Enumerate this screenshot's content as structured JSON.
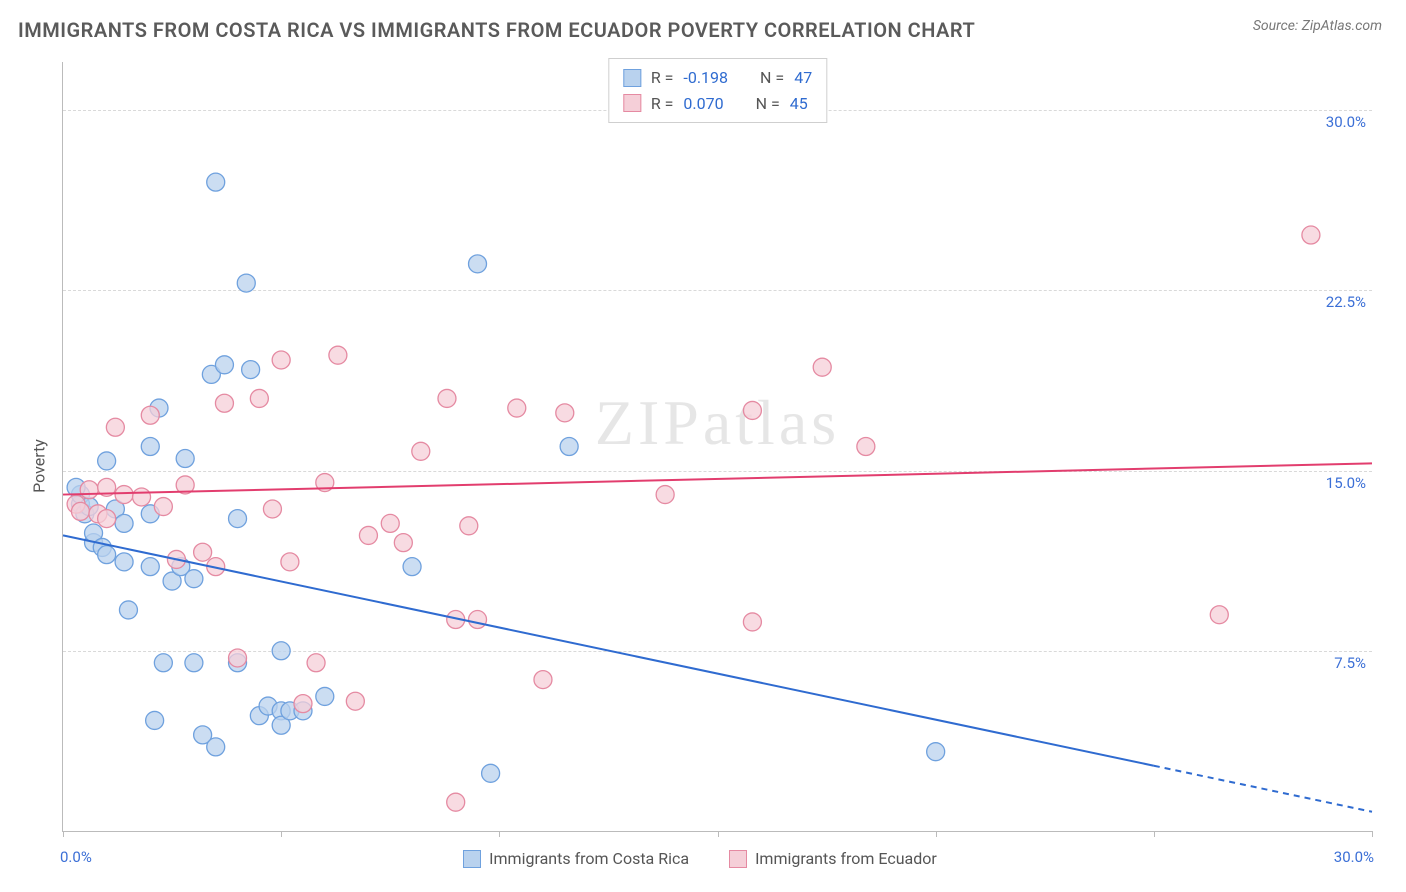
{
  "header": {
    "title": "IMMIGRANTS FROM COSTA RICA VS IMMIGRANTS FROM ECUADOR POVERTY CORRELATION CHART",
    "source_prefix": "Source: ",
    "source_name": "ZipAtlas.com"
  },
  "chart": {
    "type": "scatter",
    "ylabel": "Poverty",
    "xlim": [
      0,
      30
    ],
    "ylim": [
      0,
      32
    ],
    "x_ticks": [
      0,
      5,
      10,
      15,
      20,
      25,
      30
    ],
    "y_gridlines": [
      7.5,
      15.0,
      22.5,
      30.0
    ],
    "y_grid_labels": [
      "7.5%",
      "15.0%",
      "22.5%",
      "30.0%"
    ],
    "x_min_label": "0.0%",
    "x_max_label": "30.0%",
    "background_color": "#ffffff",
    "grid_color": "#d9d9d9",
    "axis_color": "#bbbbbb",
    "tick_label_color": "#3b6fd6",
    "watermark": "ZIPatlas",
    "series": [
      {
        "name": "Immigrants from Costa Rica",
        "color_fill": "#b9d2ee",
        "color_stroke": "#6fa1de",
        "line_color": "#2f6bd0",
        "marker_radius": 9,
        "trend": {
          "x1": 0,
          "y1": 12.3,
          "x2": 30,
          "y2": 0.8,
          "dashed_from_x": 25
        },
        "stats": {
          "R_label": "R = ",
          "R": "-0.198",
          "N_label": "N = ",
          "N": "47"
        },
        "points": [
          [
            0.4,
            13.6
          ],
          [
            0.4,
            14.0
          ],
          [
            0.5,
            13.2
          ],
          [
            0.6,
            13.5
          ],
          [
            0.7,
            12.0
          ],
          [
            0.7,
            12.4
          ],
          [
            0.9,
            11.8
          ],
          [
            1.0,
            11.5
          ],
          [
            1.0,
            15.4
          ],
          [
            1.2,
            13.4
          ],
          [
            1.4,
            12.8
          ],
          [
            1.4,
            11.2
          ],
          [
            1.5,
            9.2
          ],
          [
            2.0,
            11.0
          ],
          [
            2.0,
            13.2
          ],
          [
            2.0,
            16.0
          ],
          [
            2.1,
            4.6
          ],
          [
            2.2,
            17.6
          ],
          [
            2.3,
            7.0
          ],
          [
            2.5,
            10.4
          ],
          [
            2.7,
            11.0
          ],
          [
            2.8,
            15.5
          ],
          [
            3.0,
            10.5
          ],
          [
            3.0,
            7.0
          ],
          [
            3.2,
            4.0
          ],
          [
            3.4,
            19.0
          ],
          [
            3.5,
            3.5
          ],
          [
            3.5,
            27.0
          ],
          [
            3.7,
            19.4
          ],
          [
            4.0,
            7.0
          ],
          [
            4.0,
            13.0
          ],
          [
            4.2,
            22.8
          ],
          [
            4.3,
            19.2
          ],
          [
            4.5,
            4.8
          ],
          [
            4.7,
            5.2
          ],
          [
            5.0,
            5.0
          ],
          [
            5.0,
            4.4
          ],
          [
            5.0,
            7.5
          ],
          [
            5.2,
            5.0
          ],
          [
            5.5,
            5.0
          ],
          [
            6.0,
            5.6
          ],
          [
            8.0,
            11.0
          ],
          [
            9.5,
            23.6
          ],
          [
            9.8,
            2.4
          ],
          [
            11.6,
            16.0
          ],
          [
            20.0,
            3.3
          ],
          [
            0.3,
            14.3
          ]
        ]
      },
      {
        "name": "Immigrants from Ecuador",
        "color_fill": "#f5cfd8",
        "color_stroke": "#e58aa2",
        "line_color": "#e23d6e",
        "marker_radius": 9,
        "trend": {
          "x1": 0,
          "y1": 14.0,
          "x2": 30,
          "y2": 15.3,
          "dashed_from_x": 30
        },
        "stats": {
          "R_label": "R = ",
          "R": "0.070",
          "N_label": "N = ",
          "N": "45"
        },
        "points": [
          [
            0.3,
            13.6
          ],
          [
            0.4,
            13.3
          ],
          [
            0.6,
            14.2
          ],
          [
            0.8,
            13.2
          ],
          [
            1.0,
            14.3
          ],
          [
            1.0,
            13.0
          ],
          [
            1.2,
            16.8
          ],
          [
            1.4,
            14.0
          ],
          [
            1.8,
            13.9
          ],
          [
            2.0,
            17.3
          ],
          [
            2.3,
            13.5
          ],
          [
            2.6,
            11.3
          ],
          [
            2.8,
            14.4
          ],
          [
            3.2,
            11.6
          ],
          [
            3.5,
            11.0
          ],
          [
            3.7,
            17.8
          ],
          [
            4.0,
            7.2
          ],
          [
            4.5,
            18.0
          ],
          [
            4.8,
            13.4
          ],
          [
            5.0,
            19.6
          ],
          [
            5.2,
            11.2
          ],
          [
            5.5,
            5.3
          ],
          [
            5.8,
            7.0
          ],
          [
            6.0,
            14.5
          ],
          [
            6.3,
            19.8
          ],
          [
            6.7,
            5.4
          ],
          [
            7.0,
            12.3
          ],
          [
            7.5,
            12.8
          ],
          [
            7.8,
            12.0
          ],
          [
            8.2,
            15.8
          ],
          [
            8.8,
            18.0
          ],
          [
            9.0,
            1.2
          ],
          [
            9.0,
            8.8
          ],
          [
            9.3,
            12.7
          ],
          [
            9.5,
            8.8
          ],
          [
            10.4,
            17.6
          ],
          [
            11.0,
            6.3
          ],
          [
            11.5,
            17.4
          ],
          [
            13.8,
            14.0
          ],
          [
            15.8,
            17.5
          ],
          [
            15.8,
            8.7
          ],
          [
            17.4,
            19.3
          ],
          [
            18.4,
            16.0
          ],
          [
            26.5,
            9.0
          ],
          [
            28.6,
            24.8
          ]
        ]
      }
    ],
    "bottom_legend": [
      {
        "label": "Immigrants from Costa Rica",
        "fill": "#b9d2ee",
        "stroke": "#6fa1de"
      },
      {
        "label": "Immigrants from Ecuador",
        "fill": "#f5cfd8",
        "stroke": "#e58aa2"
      }
    ]
  }
}
